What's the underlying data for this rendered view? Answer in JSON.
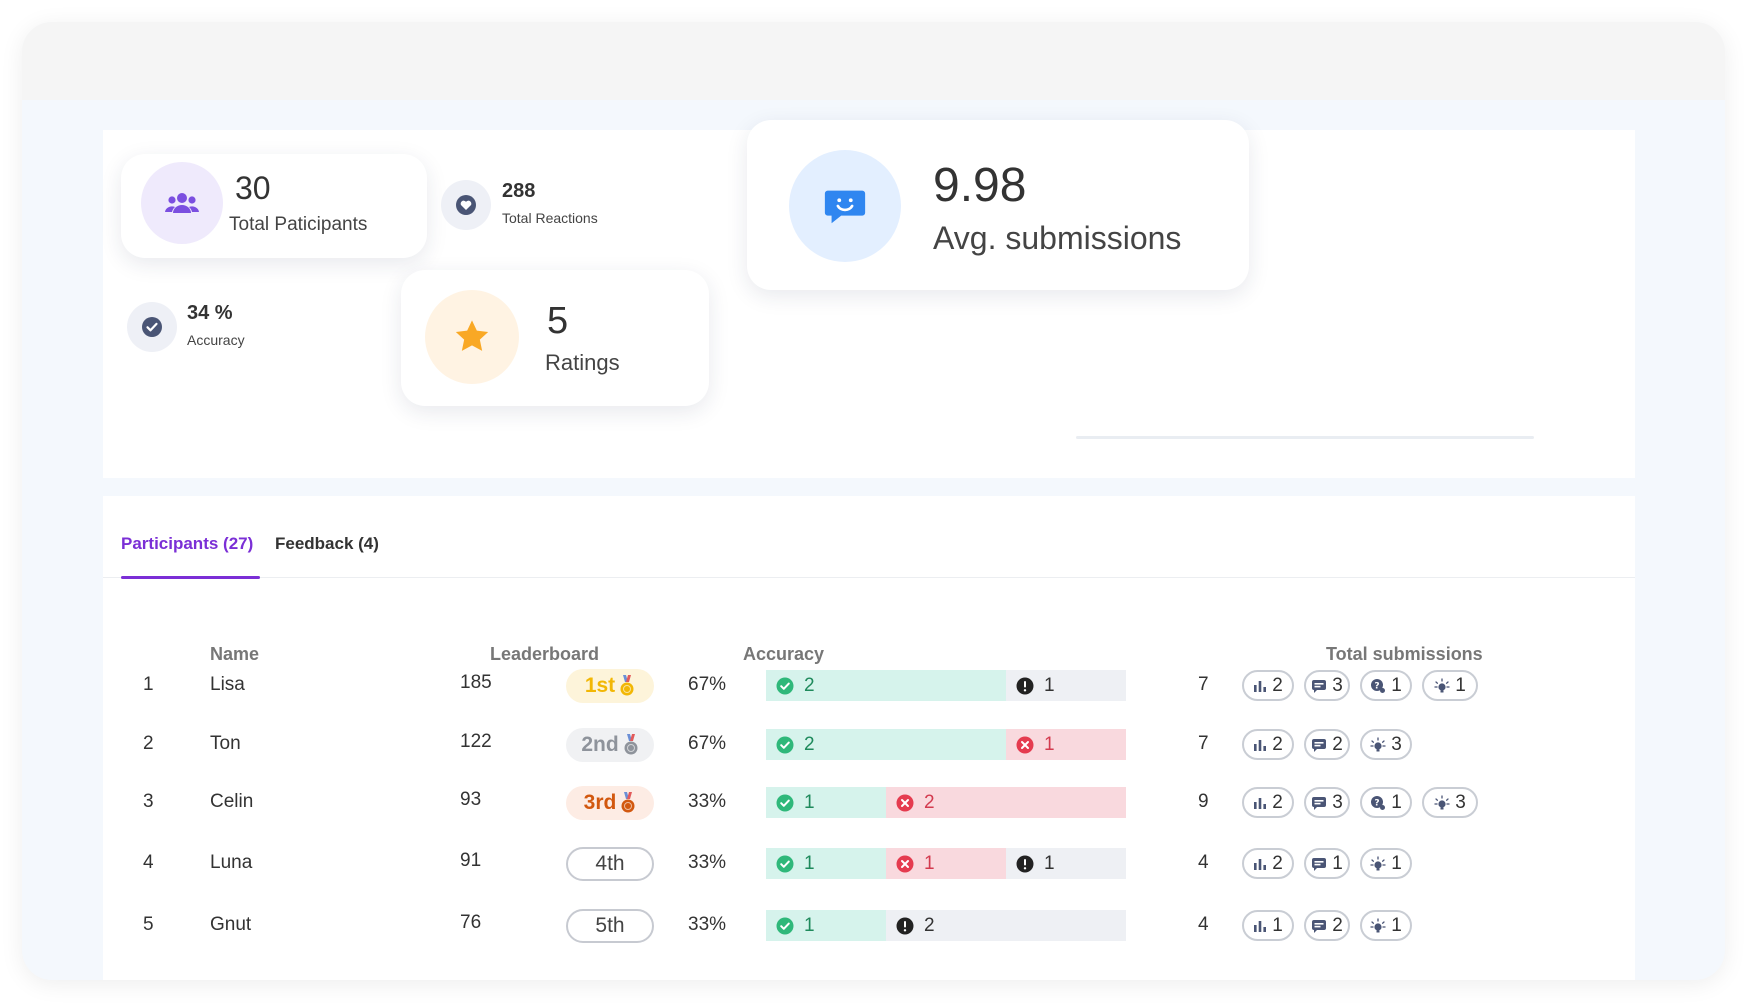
{
  "stats": {
    "participants": {
      "value": "30",
      "label": "Total Paticipants",
      "icon": "group-icon"
    },
    "reactions": {
      "value": "288",
      "label": "Total Reactions",
      "icon": "heart-icon"
    },
    "accuracy": {
      "value": "34 %",
      "label": "Accuracy",
      "icon": "check-circle-icon"
    },
    "ratings": {
      "value": "5",
      "label": "Ratings",
      "icon": "star-icon"
    },
    "submissions": {
      "value": "9.98",
      "label": "Avg. submissions",
      "icon": "chat-smile-icon"
    }
  },
  "tabs": [
    {
      "label": "Participants (27)",
      "active": true
    },
    {
      "label": "Feedback (4)",
      "active": false
    }
  ],
  "table": {
    "headers": {
      "name": "Name",
      "leaderboard": "Leaderboard",
      "accuracy": "Accuracy",
      "submissions": "Total submissions"
    },
    "rows": [
      {
        "rank": "1",
        "name": "Lisa",
        "score": "185",
        "place": "1st",
        "medal": "gold",
        "accuracy": "67%",
        "segs": [
          {
            "type": "green",
            "value": "2",
            "frac": 0.667
          },
          {
            "type": "gray",
            "value": "1",
            "frac": 0.333
          }
        ],
        "total": "7",
        "pills": [
          {
            "icon": "poll-icon",
            "value": "2"
          },
          {
            "icon": "text-icon",
            "value": "3"
          },
          {
            "icon": "question-icon",
            "value": "1"
          },
          {
            "icon": "idea-icon",
            "value": "1"
          }
        ]
      },
      {
        "rank": "2",
        "name": "Ton",
        "score": "122",
        "place": "2nd",
        "medal": "silver",
        "accuracy": "67%",
        "segs": [
          {
            "type": "green",
            "value": "2",
            "frac": 0.667
          },
          {
            "type": "red",
            "value": "1",
            "frac": 0.333
          }
        ],
        "total": "7",
        "pills": [
          {
            "icon": "poll-icon",
            "value": "2"
          },
          {
            "icon": "text-icon",
            "value": "2"
          },
          {
            "icon": "idea-icon",
            "value": "3"
          }
        ]
      },
      {
        "rank": "3",
        "name": "Celin",
        "score": "93",
        "place": "3rd",
        "medal": "bronze",
        "accuracy": "33%",
        "segs": [
          {
            "type": "green",
            "value": "1",
            "frac": 0.333
          },
          {
            "type": "red",
            "value": "2",
            "frac": 0.667
          }
        ],
        "total": "9",
        "pills": [
          {
            "icon": "poll-icon",
            "value": "2"
          },
          {
            "icon": "text-icon",
            "value": "3"
          },
          {
            "icon": "question-icon",
            "value": "1"
          },
          {
            "icon": "idea-icon",
            "value": "3"
          }
        ]
      },
      {
        "rank": "4",
        "name": "Luna",
        "score": "91",
        "place": "4th",
        "medal": "none",
        "accuracy": "33%",
        "segs": [
          {
            "type": "green",
            "value": "1",
            "frac": 0.333
          },
          {
            "type": "red",
            "value": "1",
            "frac": 0.333
          },
          {
            "type": "gray",
            "value": "1",
            "frac": 0.334
          }
        ],
        "total": "4",
        "pills": [
          {
            "icon": "poll-icon",
            "value": "2"
          },
          {
            "icon": "text-icon",
            "value": "1"
          },
          {
            "icon": "idea-icon",
            "value": "1"
          }
        ]
      },
      {
        "rank": "5",
        "name": "Gnut",
        "score": "76",
        "place": "5th",
        "medal": "none",
        "accuracy": "33%",
        "segs": [
          {
            "type": "green",
            "value": "1",
            "frac": 0.333
          },
          {
            "type": "gray",
            "value": "2",
            "frac": 0.667
          }
        ],
        "total": "4",
        "pills": [
          {
            "icon": "poll-icon",
            "value": "1"
          },
          {
            "icon": "text-icon",
            "value": "2"
          },
          {
            "icon": "idea-icon",
            "value": "1"
          }
        ]
      }
    ]
  },
  "colors": {
    "accent": "#7b2fd6",
    "green": "#2fb87a",
    "red": "#e53b4f",
    "gold": "#f2b705",
    "silver": "#8e939b",
    "bronze": "#d2580f"
  }
}
